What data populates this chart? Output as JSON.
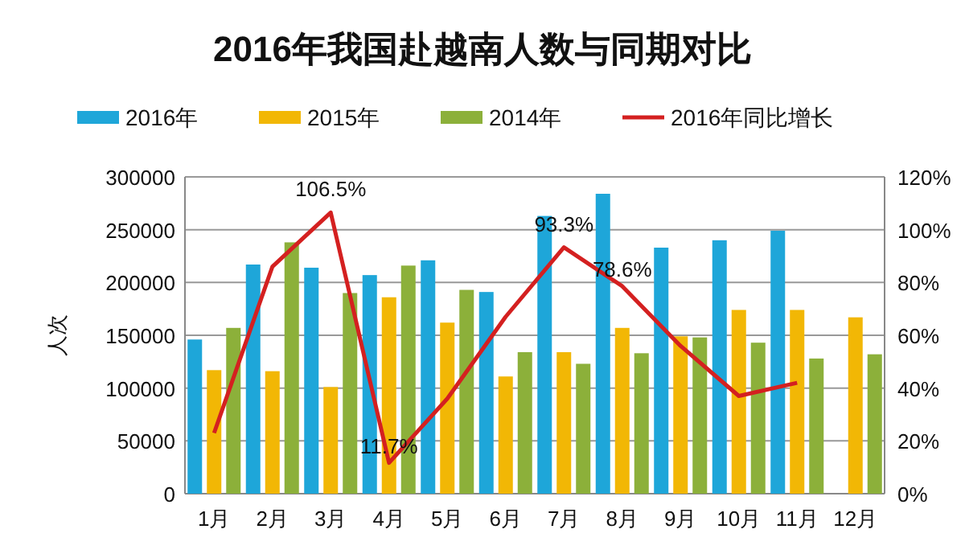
{
  "chart_data": {
    "type": "bar",
    "title": "2016年我国赴越南人数与同期对比",
    "ylabel": "人次",
    "categories": [
      "1月",
      "2月",
      "3月",
      "4月",
      "5月",
      "6月",
      "7月",
      "8月",
      "9月",
      "10月",
      "11月",
      "12月"
    ],
    "series": [
      {
        "name": "2016年",
        "color": "#1ea6d9",
        "values": [
          146000,
          217000,
          214000,
          207000,
          221000,
          191000,
          263000,
          284000,
          233000,
          240000,
          249000,
          null
        ]
      },
      {
        "name": "2015年",
        "color": "#f2b705",
        "values": [
          117000,
          116000,
          101000,
          186000,
          162000,
          111000,
          134000,
          157000,
          149000,
          174000,
          174000,
          167000
        ]
      },
      {
        "name": "2014年",
        "color": "#8cb03a",
        "values": [
          157000,
          238000,
          190000,
          216000,
          193000,
          134000,
          123000,
          133000,
          148000,
          143000,
          128000,
          132000
        ]
      },
      {
        "name": "2016年同比增长",
        "type": "line",
        "axis": "y2",
        "color": "#d42020",
        "values": [
          23,
          86,
          106.5,
          11.7,
          36,
          67,
          93.3,
          78.6,
          56,
          37,
          42,
          null
        ],
        "value_labels": [
          null,
          null,
          "106.5%",
          "11.7%",
          null,
          null,
          "93.3%",
          "78.6%",
          null,
          null,
          null,
          null
        ]
      }
    ],
    "ylim": [
      0,
      300000
    ],
    "yticks": [
      0,
      50000,
      100000,
      150000,
      200000,
      250000,
      300000
    ],
    "y2lim": [
      0,
      120
    ],
    "y2ticks": [
      {
        "value": 0,
        "label": "0%"
      },
      {
        "value": 20,
        "label": "20%"
      },
      {
        "value": 40,
        "label": "40%"
      },
      {
        "value": 60,
        "label": "60%"
      },
      {
        "value": 80,
        "label": "80%"
      },
      {
        "value": 100,
        "label": "100%"
      },
      {
        "value": 120,
        "label": "120%"
      }
    ],
    "grid": "y",
    "legend": "top"
  }
}
